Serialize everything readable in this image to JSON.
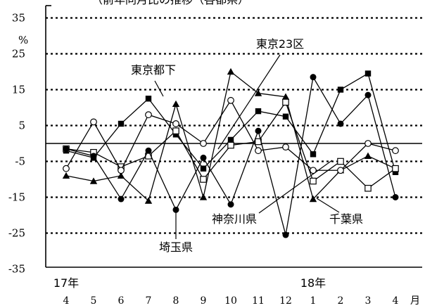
{
  "chart_data": {
    "type": "line",
    "title": "（前年同月比の推移（各都県）",
    "ylabel": "%",
    "ylim": [
      -35,
      38
    ],
    "yticks": [
      35,
      25,
      15,
      5,
      -5,
      -15,
      -25,
      -35
    ],
    "ytick_labels": [
      "35",
      "25",
      "15",
      "5",
      "-5",
      "-15",
      "-25",
      "-35"
    ],
    "grid": true,
    "grid_values": [
      35,
      25,
      15,
      5,
      -5,
      -15,
      -25
    ],
    "zero_line": true,
    "categories": [
      "4",
      "5",
      "6",
      "7",
      "8",
      "9",
      "10",
      "11",
      "12",
      "1",
      "2",
      "3",
      "4"
    ],
    "month_unit": "月",
    "year_labels": [
      {
        "text": "17年",
        "category_index": 0
      },
      {
        "text": "18年",
        "category_index": 9
      }
    ],
    "series": [
      {
        "name": "東京都下",
        "marker": "square-filled",
        "values": [
          -2,
          -4,
          5.5,
          12.5,
          2.5,
          -7,
          1,
          9,
          7.5,
          -3,
          15,
          19.5,
          -8
        ]
      },
      {
        "name": "東京23区",
        "marker": "triangle-filled",
        "values": [
          -9,
          -10.5,
          -9,
          -16,
          11,
          -15,
          20,
          14,
          13,
          -15.5,
          -7.5,
          -3.5,
          -7
        ]
      },
      {
        "name": "神奈川県",
        "marker": "square-open",
        "values": [
          -1.5,
          -2.5,
          -6.5,
          -3.5,
          3.5,
          -10,
          -0.5,
          0.5,
          11.5,
          -10.5,
          -5,
          -12.5,
          -7
        ]
      },
      {
        "name": "千葉県",
        "marker": "circle-open",
        "values": [
          -7,
          6,
          -7.5,
          8,
          5.5,
          0,
          12,
          -2,
          -1,
          -7.5,
          -7.5,
          0,
          -2
        ]
      },
      {
        "name": "埼玉県",
        "marker": "circle-filled",
        "values": [
          -1.5,
          -3.5,
          -15.5,
          -2,
          -18.5,
          -4,
          -17,
          3.5,
          -25.5,
          18.5,
          5.5,
          13.5,
          -15
        ]
      }
    ],
    "annotations": [
      {
        "text": "東京23区",
        "series": "東京23区"
      },
      {
        "text": "東京都下",
        "series": "東京都下"
      },
      {
        "text": "神奈川県",
        "series": "神奈川県"
      },
      {
        "text": "千葉県",
        "series": "千葉県"
      },
      {
        "text": "埼玉県",
        "series": "埼玉県"
      }
    ]
  }
}
